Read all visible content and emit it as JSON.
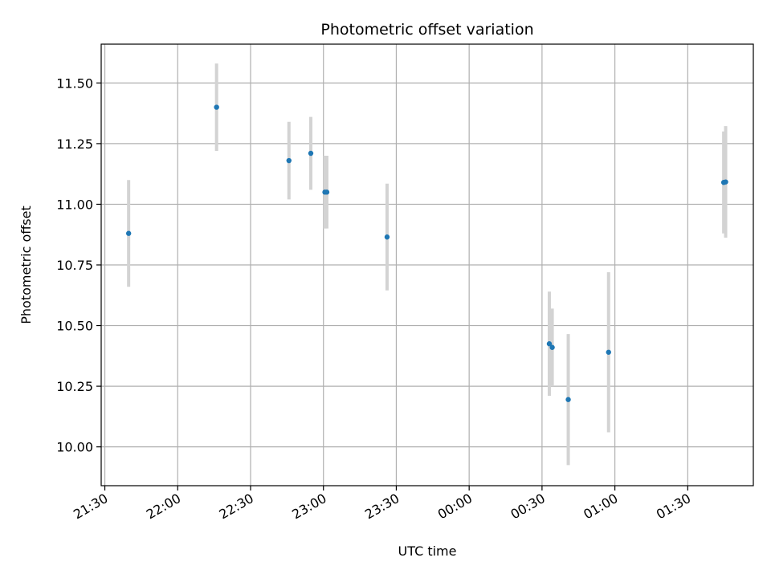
{
  "chart_data": {
    "type": "scatter",
    "title": "Photometric offset variation",
    "xlabel": "UTC time",
    "ylabel": "Photometric offset",
    "x_ticks": [
      "21:30",
      "22:00",
      "22:30",
      "23:00",
      "23:30",
      "00:00",
      "00:30",
      "01:00",
      "01:30"
    ],
    "x_tick_minutes": [
      0,
      30,
      60,
      90,
      120,
      150,
      180,
      210,
      240
    ],
    "xlim_minutes": [
      -1.5,
      267
    ],
    "y_ticks": [
      "10.00",
      "10.25",
      "10.50",
      "10.75",
      "11.00",
      "11.25",
      "11.50"
    ],
    "y_tick_values": [
      10.0,
      10.25,
      10.5,
      10.75,
      11.0,
      11.25,
      11.5
    ],
    "ylim": [
      9.84,
      11.66
    ],
    "grid": true,
    "marker_color": "#1f77b4",
    "errorbar_color": "#d3d3d3",
    "points": [
      {
        "time": "21:40",
        "t": 9.8,
        "y": 10.88,
        "err": 0.22
      },
      {
        "time": "22:16",
        "t": 46.0,
        "y": 11.4,
        "err": 0.18
      },
      {
        "time": "22:46",
        "t": 75.8,
        "y": 11.18,
        "err": 0.16
      },
      {
        "time": "22:55",
        "t": 84.8,
        "y": 11.21,
        "err": 0.15
      },
      {
        "time": "23:00",
        "t": 90.6,
        "y": 11.05,
        "err": 0.15
      },
      {
        "time": "23:00",
        "t": 91.4,
        "y": 11.05,
        "err": 0.15
      },
      {
        "time": "23:26",
        "t": 116.2,
        "y": 10.865,
        "err": 0.22
      },
      {
        "time": "00:33",
        "t": 183.0,
        "y": 10.425,
        "err": 0.215
      },
      {
        "time": "00:34",
        "t": 184.2,
        "y": 10.41,
        "err": 0.16
      },
      {
        "time": "00:40",
        "t": 190.8,
        "y": 10.195,
        "err": 0.27
      },
      {
        "time": "00:57",
        "t": 207.4,
        "y": 10.39,
        "err": 0.33
      },
      {
        "time": "01:45",
        "t": 254.8,
        "y": 11.09,
        "err": 0.21
      },
      {
        "time": "01:45",
        "t": 255.6,
        "y": 11.092,
        "err": 0.23
      }
    ]
  }
}
